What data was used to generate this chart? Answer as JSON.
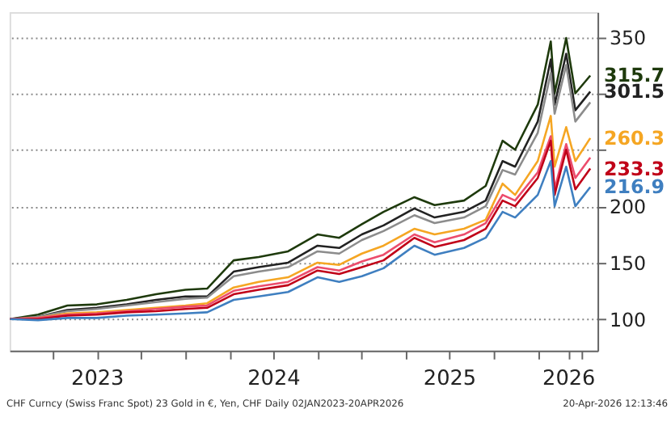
{
  "chart_data": {
    "type": "line",
    "x": [
      "2023-01-02",
      "2023-03-01",
      "2023-05-01",
      "2023-07-01",
      "2023-09-01",
      "2023-11-01",
      "2024-01-01",
      "2024-02-15",
      "2024-04-10",
      "2024-06-01",
      "2024-08-01",
      "2024-10-01",
      "2024-11-15",
      "2025-01-01",
      "2025-02-15",
      "2025-04-20",
      "2025-06-01",
      "2025-08-01",
      "2025-09-15",
      "2025-10-20",
      "2025-11-15",
      "2026-01-01",
      "2026-01-28",
      "2026-02-05",
      "2026-03-01",
      "2026-03-20",
      "2026-04-20"
    ],
    "series": [
      {
        "color": "#1e3a0c",
        "values": [
          100,
          104,
          112,
          113,
          117,
          122,
          126,
          127,
          152,
          155,
          160,
          175,
          172,
          184,
          195,
          208,
          201,
          205,
          218,
          258,
          250,
          290,
          346,
          300,
          349,
          300,
          315.7
        ],
        "value_labels": [
          null,
          null,
          null,
          null,
          null,
          null,
          null,
          null,
          null,
          null,
          null,
          null,
          null,
          null,
          null,
          null,
          null,
          null,
          null,
          null,
          null,
          null,
          null,
          null,
          null,
          null,
          "315.7"
        ]
      },
      {
        "color": "#222222",
        "values": [
          100,
          102,
          108,
          110,
          113,
          117,
          120,
          120,
          142,
          146,
          150,
          165,
          163,
          175,
          183,
          198,
          190,
          195,
          205,
          240,
          235,
          275,
          330,
          290,
          335,
          285,
          301.5
        ],
        "value_labels": [
          null,
          null,
          null,
          null,
          null,
          null,
          null,
          null,
          null,
          null,
          null,
          null,
          null,
          null,
          null,
          null,
          null,
          null,
          null,
          null,
          null,
          null,
          null,
          null,
          null,
          null,
          "301.5"
        ]
      },
      {
        "color": "#8c8c8c",
        "values": [
          100,
          102,
          107,
          109,
          112,
          115,
          118,
          119,
          138,
          142,
          146,
          160,
          158,
          170,
          178,
          192,
          185,
          190,
          200,
          232,
          228,
          265,
          318,
          282,
          325,
          275,
          292
        ]
      },
      {
        "color": "#f5a623",
        "values": [
          100,
          101,
          105,
          106,
          108,
          110,
          112,
          114,
          128,
          133,
          137,
          150,
          148,
          158,
          165,
          180,
          175,
          180,
          188,
          220,
          210,
          240,
          280,
          235,
          270,
          240,
          260.3
        ],
        "value_labels": [
          null,
          null,
          null,
          null,
          null,
          null,
          null,
          null,
          null,
          null,
          null,
          null,
          null,
          null,
          null,
          null,
          null,
          null,
          null,
          null,
          null,
          null,
          null,
          null,
          null,
          null,
          "260.3"
        ]
      },
      {
        "color": "#ec4c6c",
        "values": [
          100,
          101,
          104,
          105,
          107,
          109,
          111,
          112,
          125,
          129,
          133,
          146,
          143,
          151,
          157,
          175,
          168,
          175,
          185,
          210,
          205,
          230,
          262,
          215,
          255,
          225,
          243
        ]
      },
      {
        "color": "#c00018",
        "values": [
          100,
          100,
          103,
          104,
          106,
          107,
          109,
          110,
          122,
          126,
          130,
          143,
          140,
          146,
          152,
          172,
          164,
          170,
          180,
          205,
          200,
          225,
          258,
          210,
          250,
          215,
          233.3
        ],
        "value_labels": [
          null,
          null,
          null,
          null,
          null,
          null,
          null,
          null,
          null,
          null,
          null,
          null,
          null,
          null,
          null,
          null,
          null,
          null,
          null,
          null,
          null,
          null,
          null,
          null,
          null,
          null,
          "233.3"
        ]
      },
      {
        "color": "#3f7fc0",
        "values": [
          100,
          99,
          101,
          101,
          103,
          104,
          105,
          106,
          117,
          120,
          124,
          137,
          133,
          138,
          145,
          165,
          157,
          163,
          172,
          195,
          190,
          210,
          240,
          200,
          235,
          200,
          216.9
        ],
        "value_labels": [
          null,
          null,
          null,
          null,
          null,
          null,
          null,
          null,
          null,
          null,
          null,
          null,
          null,
          null,
          null,
          null,
          null,
          null,
          null,
          null,
          null,
          null,
          null,
          null,
          null,
          null,
          "216.9"
        ]
      }
    ],
    "xlim": [
      "2023-01-01",
      "2026-05-05"
    ],
    "xticks": [
      {
        "value": "2023-04-01",
        "label": null
      },
      {
        "value": "2023-07-01",
        "label": "2023"
      },
      {
        "value": "2023-10-01",
        "label": null
      },
      {
        "value": "2024-01-01",
        "label": null
      },
      {
        "value": "2024-04-01",
        "label": null
      },
      {
        "value": "2024-07-01",
        "label": "2024"
      },
      {
        "value": "2024-10-01",
        "label": null
      },
      {
        "value": "2025-01-01",
        "label": null
      },
      {
        "value": "2025-04-01",
        "label": null
      },
      {
        "value": "2025-07-01",
        "label": "2025"
      },
      {
        "value": "2025-10-01",
        "label": null
      },
      {
        "value": "2026-01-01",
        "label": null
      },
      {
        "value": "2026-03-05",
        "label": "2026"
      },
      {
        "value": "2026-04-01",
        "label": null
      }
    ],
    "ylim": [
      72,
      372
    ],
    "yticks": [
      100,
      150,
      200,
      {
        "value": 250,
        "label": null
      },
      {
        "value": 300,
        "label": null
      },
      350
    ],
    "grid": "y",
    "annotations": [
      "CHF Curncy (Swiss Franc Spot) 23 Gold in €, Yen, CHF Daily 02JAN2023-20APR2026",
      "20-Apr-2026 12:13:46"
    ]
  }
}
